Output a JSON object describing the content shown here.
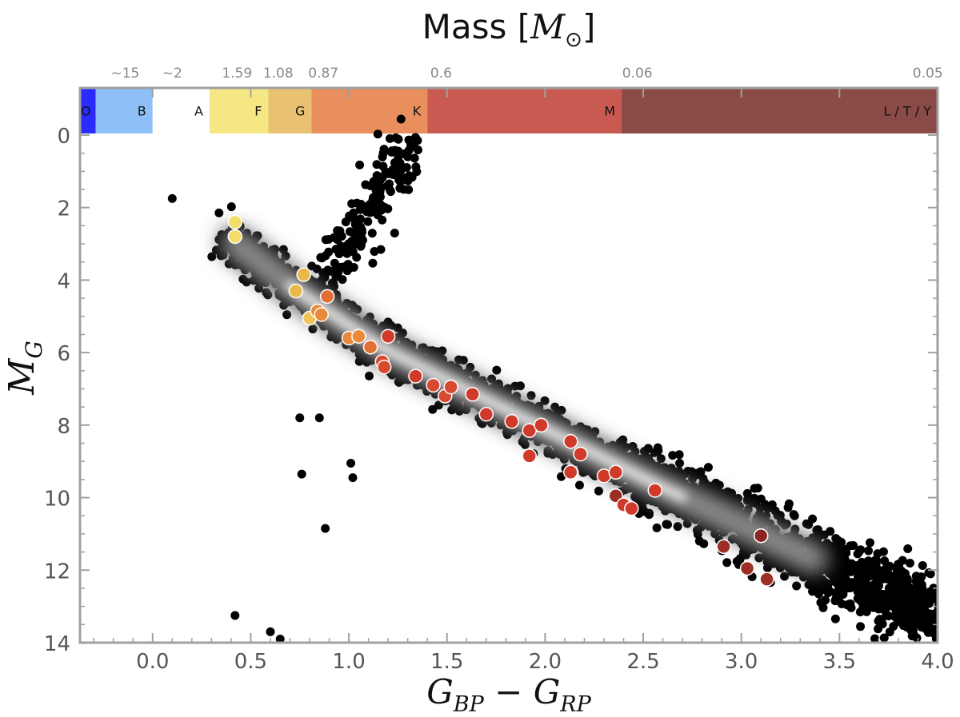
{
  "chart_data": {
    "type": "scatter",
    "top_title": "Mass [M⊙]",
    "top_title_main": "Mass [",
    "top_title_symbol": "M",
    "top_title_sub": "⊙",
    "top_title_close": "]",
    "xlabel": "G_BP − G_RP",
    "ylabel": "M_G",
    "xlim": [
      -0.37,
      4.0
    ],
    "ylim": [
      14,
      -1.3
    ],
    "x_ticks": [
      0.0,
      0.5,
      1.0,
      1.5,
      2.0,
      2.5,
      3.0,
      3.5,
      4.0
    ],
    "x_tick_labels": [
      "0.0",
      "0.5",
      "1.0",
      "1.5",
      "2.0",
      "2.5",
      "3.0",
      "3.5",
      "4.0"
    ],
    "y_ticks": [
      0,
      2,
      4,
      6,
      8,
      10,
      12,
      14
    ],
    "y_tick_labels": [
      "0",
      "2",
      "4",
      "6",
      "8",
      "10",
      "12",
      "14"
    ],
    "spectral_bands": [
      {
        "label": "O",
        "x0": -0.37,
        "x1": -0.29,
        "color": "#2b2bff"
      },
      {
        "label": "B",
        "x0": -0.29,
        "x1": 0.0,
        "color": "#8fbff7"
      },
      {
        "label": "A",
        "x0": 0.0,
        "x1": 0.29,
        "color": "#ffffff"
      },
      {
        "label": "F",
        "x0": 0.29,
        "x1": 0.59,
        "color": "#f5e784"
      },
      {
        "label": "G",
        "x0": 0.59,
        "x1": 0.81,
        "color": "#e8c270"
      },
      {
        "label": "K",
        "x0": 0.81,
        "x1": 1.4,
        "color": "#e98f5d"
      },
      {
        "label": "M",
        "x0": 1.4,
        "x1": 2.39,
        "color": "#c95a51"
      },
      {
        "label": "L / T / Y",
        "x0": 2.39,
        "x1": 4.0,
        "color": "#8a4a46"
      }
    ],
    "mass_labels": [
      {
        "text": "∼15",
        "x": -0.14
      },
      {
        "text": "∼2",
        "x": 0.1
      },
      {
        "text": "1.59",
        "x": 0.43
      },
      {
        "text": "1.08",
        "x": 0.64
      },
      {
        "text": "0.87",
        "x": 0.87
      },
      {
        "text": "0.6",
        "x": 1.47
      },
      {
        "text": "0.06",
        "x": 2.47
      },
      {
        "text": "0.05",
        "x": 3.95
      }
    ],
    "highlighted_stars": [
      {
        "x": 0.42,
        "y": 2.4,
        "color": "#f3dc6a"
      },
      {
        "x": 0.42,
        "y": 2.8,
        "color": "#f3dc6a"
      },
      {
        "x": 0.77,
        "y": 3.85,
        "color": "#e9b84a"
      },
      {
        "x": 0.73,
        "y": 4.3,
        "color": "#e9b84a"
      },
      {
        "x": 0.8,
        "y": 5.05,
        "color": "#f1c35a"
      },
      {
        "x": 0.84,
        "y": 4.85,
        "color": "#e9893a"
      },
      {
        "x": 0.86,
        "y": 4.95,
        "color": "#e9893a"
      },
      {
        "x": 0.89,
        "y": 4.45,
        "color": "#e07034"
      },
      {
        "x": 1.0,
        "y": 5.6,
        "color": "#e9893a"
      },
      {
        "x": 1.05,
        "y": 5.55,
        "color": "#e9893a"
      },
      {
        "x": 1.11,
        "y": 5.85,
        "color": "#e07034"
      },
      {
        "x": 1.17,
        "y": 6.25,
        "color": "#d84a30"
      },
      {
        "x": 1.18,
        "y": 6.4,
        "color": "#d84a30"
      },
      {
        "x": 1.2,
        "y": 5.55,
        "color": "#cf3a2a"
      },
      {
        "x": 1.34,
        "y": 6.65,
        "color": "#cf3a2a"
      },
      {
        "x": 1.43,
        "y": 6.9,
        "color": "#d84a30"
      },
      {
        "x": 1.49,
        "y": 7.2,
        "color": "#d84a30"
      },
      {
        "x": 1.52,
        "y": 6.95,
        "color": "#d84a30"
      },
      {
        "x": 1.63,
        "y": 7.15,
        "color": "#cf3a2a"
      },
      {
        "x": 1.7,
        "y": 7.7,
        "color": "#cf3a2a"
      },
      {
        "x": 1.83,
        "y": 7.9,
        "color": "#cf3a2a"
      },
      {
        "x": 1.92,
        "y": 8.15,
        "color": "#cf3a2a"
      },
      {
        "x": 1.98,
        "y": 8.0,
        "color": "#cf3a2a"
      },
      {
        "x": 1.92,
        "y": 8.85,
        "color": "#cf3a2a"
      },
      {
        "x": 2.13,
        "y": 8.45,
        "color": "#cf3a2a"
      },
      {
        "x": 2.18,
        "y": 8.8,
        "color": "#cf3a2a"
      },
      {
        "x": 2.13,
        "y": 9.3,
        "color": "#cf3a2a"
      },
      {
        "x": 2.3,
        "y": 9.4,
        "color": "#cf3a2a"
      },
      {
        "x": 2.36,
        "y": 9.3,
        "color": "#cf3a2a"
      },
      {
        "x": 2.36,
        "y": 9.95,
        "color": "#9b2f26"
      },
      {
        "x": 2.4,
        "y": 10.2,
        "color": "#cf3a2a"
      },
      {
        "x": 2.44,
        "y": 10.3,
        "color": "#cf3a2a"
      },
      {
        "x": 2.56,
        "y": 9.8,
        "color": "#cf3a2a"
      },
      {
        "x": 2.91,
        "y": 11.35,
        "color": "#9b2f26"
      },
      {
        "x": 3.03,
        "y": 11.95,
        "color": "#9b2f26"
      },
      {
        "x": 3.1,
        "y": 11.05,
        "color": "#8a2620"
      },
      {
        "x": 3.13,
        "y": 12.25,
        "color": "#9b2f26"
      }
    ],
    "background_sample": "dense field of black points along main sequence with grey-white density core"
  }
}
